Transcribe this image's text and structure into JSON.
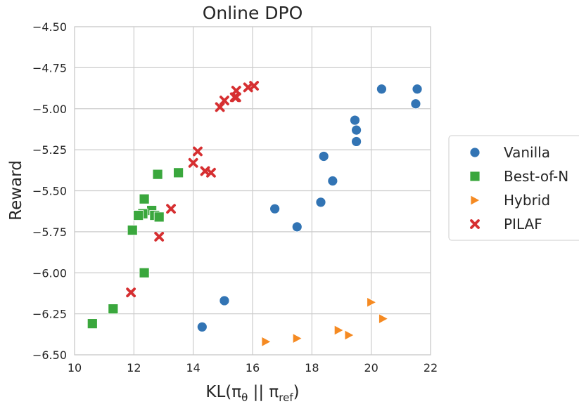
{
  "chart_data": {
    "type": "scatter",
    "title": "Online DPO",
    "xlabel": {
      "main": "KL(π",
      "sub1": "θ",
      "mid": " || π",
      "sub2": "ref",
      "end": ")"
    },
    "ylabel": "Reward",
    "xlim": [
      10,
      22
    ],
    "ylim": [
      -6.5,
      -4.5
    ],
    "xticks": [
      10,
      12,
      14,
      16,
      18,
      20,
      22
    ],
    "xtick_labels": [
      "10",
      "12",
      "14",
      "16",
      "18",
      "20",
      "22"
    ],
    "yticks": [
      -4.5,
      -4.75,
      -5.0,
      -5.25,
      -5.5,
      -5.75,
      -6.0,
      -6.25,
      -6.5
    ],
    "ytick_labels": [
      "−4.50",
      "−4.75",
      "−5.00",
      "−5.25",
      "−5.50",
      "−5.75",
      "−6.00",
      "−6.25",
      "−6.50"
    ],
    "grid": true,
    "legend_position": "right",
    "series": [
      {
        "name": "Vanilla",
        "marker": "circle",
        "color": "#3274b4",
        "points": [
          [
            20.35,
            -4.88
          ],
          [
            21.55,
            -4.88
          ],
          [
            21.5,
            -4.97
          ],
          [
            19.45,
            -5.07
          ],
          [
            19.5,
            -5.13
          ],
          [
            19.5,
            -5.2
          ],
          [
            18.4,
            -5.29
          ],
          [
            18.7,
            -5.44
          ],
          [
            18.3,
            -5.57
          ],
          [
            16.75,
            -5.61
          ],
          [
            17.5,
            -5.72
          ],
          [
            15.05,
            -6.17
          ],
          [
            14.3,
            -6.33
          ]
        ]
      },
      {
        "name": "Best-of-N",
        "marker": "square",
        "color": "#3aa73d",
        "points": [
          [
            12.8,
            -5.4
          ],
          [
            13.5,
            -5.39
          ],
          [
            12.35,
            -5.55
          ],
          [
            12.6,
            -5.62
          ],
          [
            12.3,
            -5.64
          ],
          [
            12.15,
            -5.65
          ],
          [
            12.7,
            -5.65
          ],
          [
            12.85,
            -5.66
          ],
          [
            11.95,
            -5.74
          ],
          [
            12.35,
            -6.0
          ],
          [
            11.3,
            -6.22
          ],
          [
            10.6,
            -6.31
          ]
        ]
      },
      {
        "name": "Hybrid",
        "marker": "triangle-right",
        "color": "#f58a22",
        "points": [
          [
            20.0,
            -6.18
          ],
          [
            20.4,
            -6.28
          ],
          [
            18.9,
            -6.35
          ],
          [
            19.25,
            -6.38
          ],
          [
            17.5,
            -6.4
          ],
          [
            16.45,
            -6.42
          ]
        ]
      },
      {
        "name": "PILAF",
        "marker": "x",
        "color": "#d62f31",
        "points": [
          [
            16.05,
            -4.86
          ],
          [
            15.85,
            -4.87
          ],
          [
            15.45,
            -4.89
          ],
          [
            15.4,
            -4.93
          ],
          [
            15.45,
            -4.93
          ],
          [
            15.05,
            -4.95
          ],
          [
            14.9,
            -4.99
          ],
          [
            14.15,
            -5.26
          ],
          [
            14.0,
            -5.33
          ],
          [
            14.4,
            -5.38
          ],
          [
            14.6,
            -5.39
          ],
          [
            13.25,
            -5.61
          ],
          [
            12.85,
            -5.78
          ],
          [
            11.9,
            -6.12
          ]
        ]
      }
    ]
  }
}
